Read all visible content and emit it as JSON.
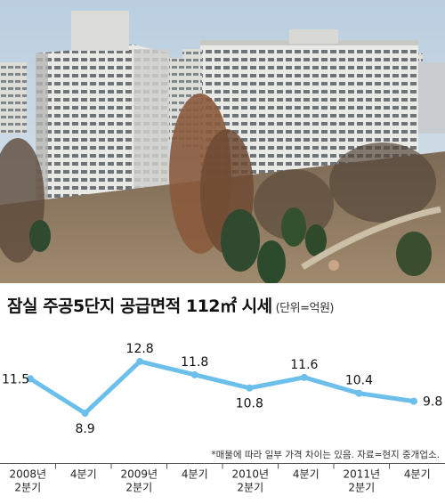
{
  "header": {
    "title": "잠실 주공5단지 공급면적 112㎡ 시세",
    "unit": "(단위=억원)"
  },
  "colors": {
    "line": "#6bbfea",
    "sky": "#c8d8e6",
    "ground": "#8a7058"
  },
  "chart_data": {
    "type": "line",
    "title": "잠실 주공5단지 공급면적 112㎡ 시세",
    "unit": "(단위=억원)",
    "categories": [
      "2008년 2분기",
      "4분기",
      "2009년 2분기",
      "4분기",
      "2010년 2분기",
      "4분기",
      "2011년 2분기",
      "4분기"
    ],
    "tick_labels": [
      [
        "2008년",
        "2분기"
      ],
      [
        "4분기"
      ],
      [
        "2009년",
        "2분기"
      ],
      [
        "4분기"
      ],
      [
        "2010년",
        "2분기"
      ],
      [
        "4분기"
      ],
      [
        "2011년",
        "2분기"
      ],
      [
        "4분기"
      ]
    ],
    "values": [
      11.5,
      8.9,
      12.8,
      11.8,
      10.8,
      11.6,
      10.4,
      9.8
    ],
    "value_labels": [
      "11.5",
      "8.9",
      "12.8",
      "11.8",
      "10.8",
      "11.6",
      "10.4",
      "9.8"
    ],
    "ylim": [
      8.5,
      13.2
    ],
    "grid": false,
    "note": "*매물에 따라 일부 가격 차이는 있음. 자료=현지 중개업소."
  }
}
